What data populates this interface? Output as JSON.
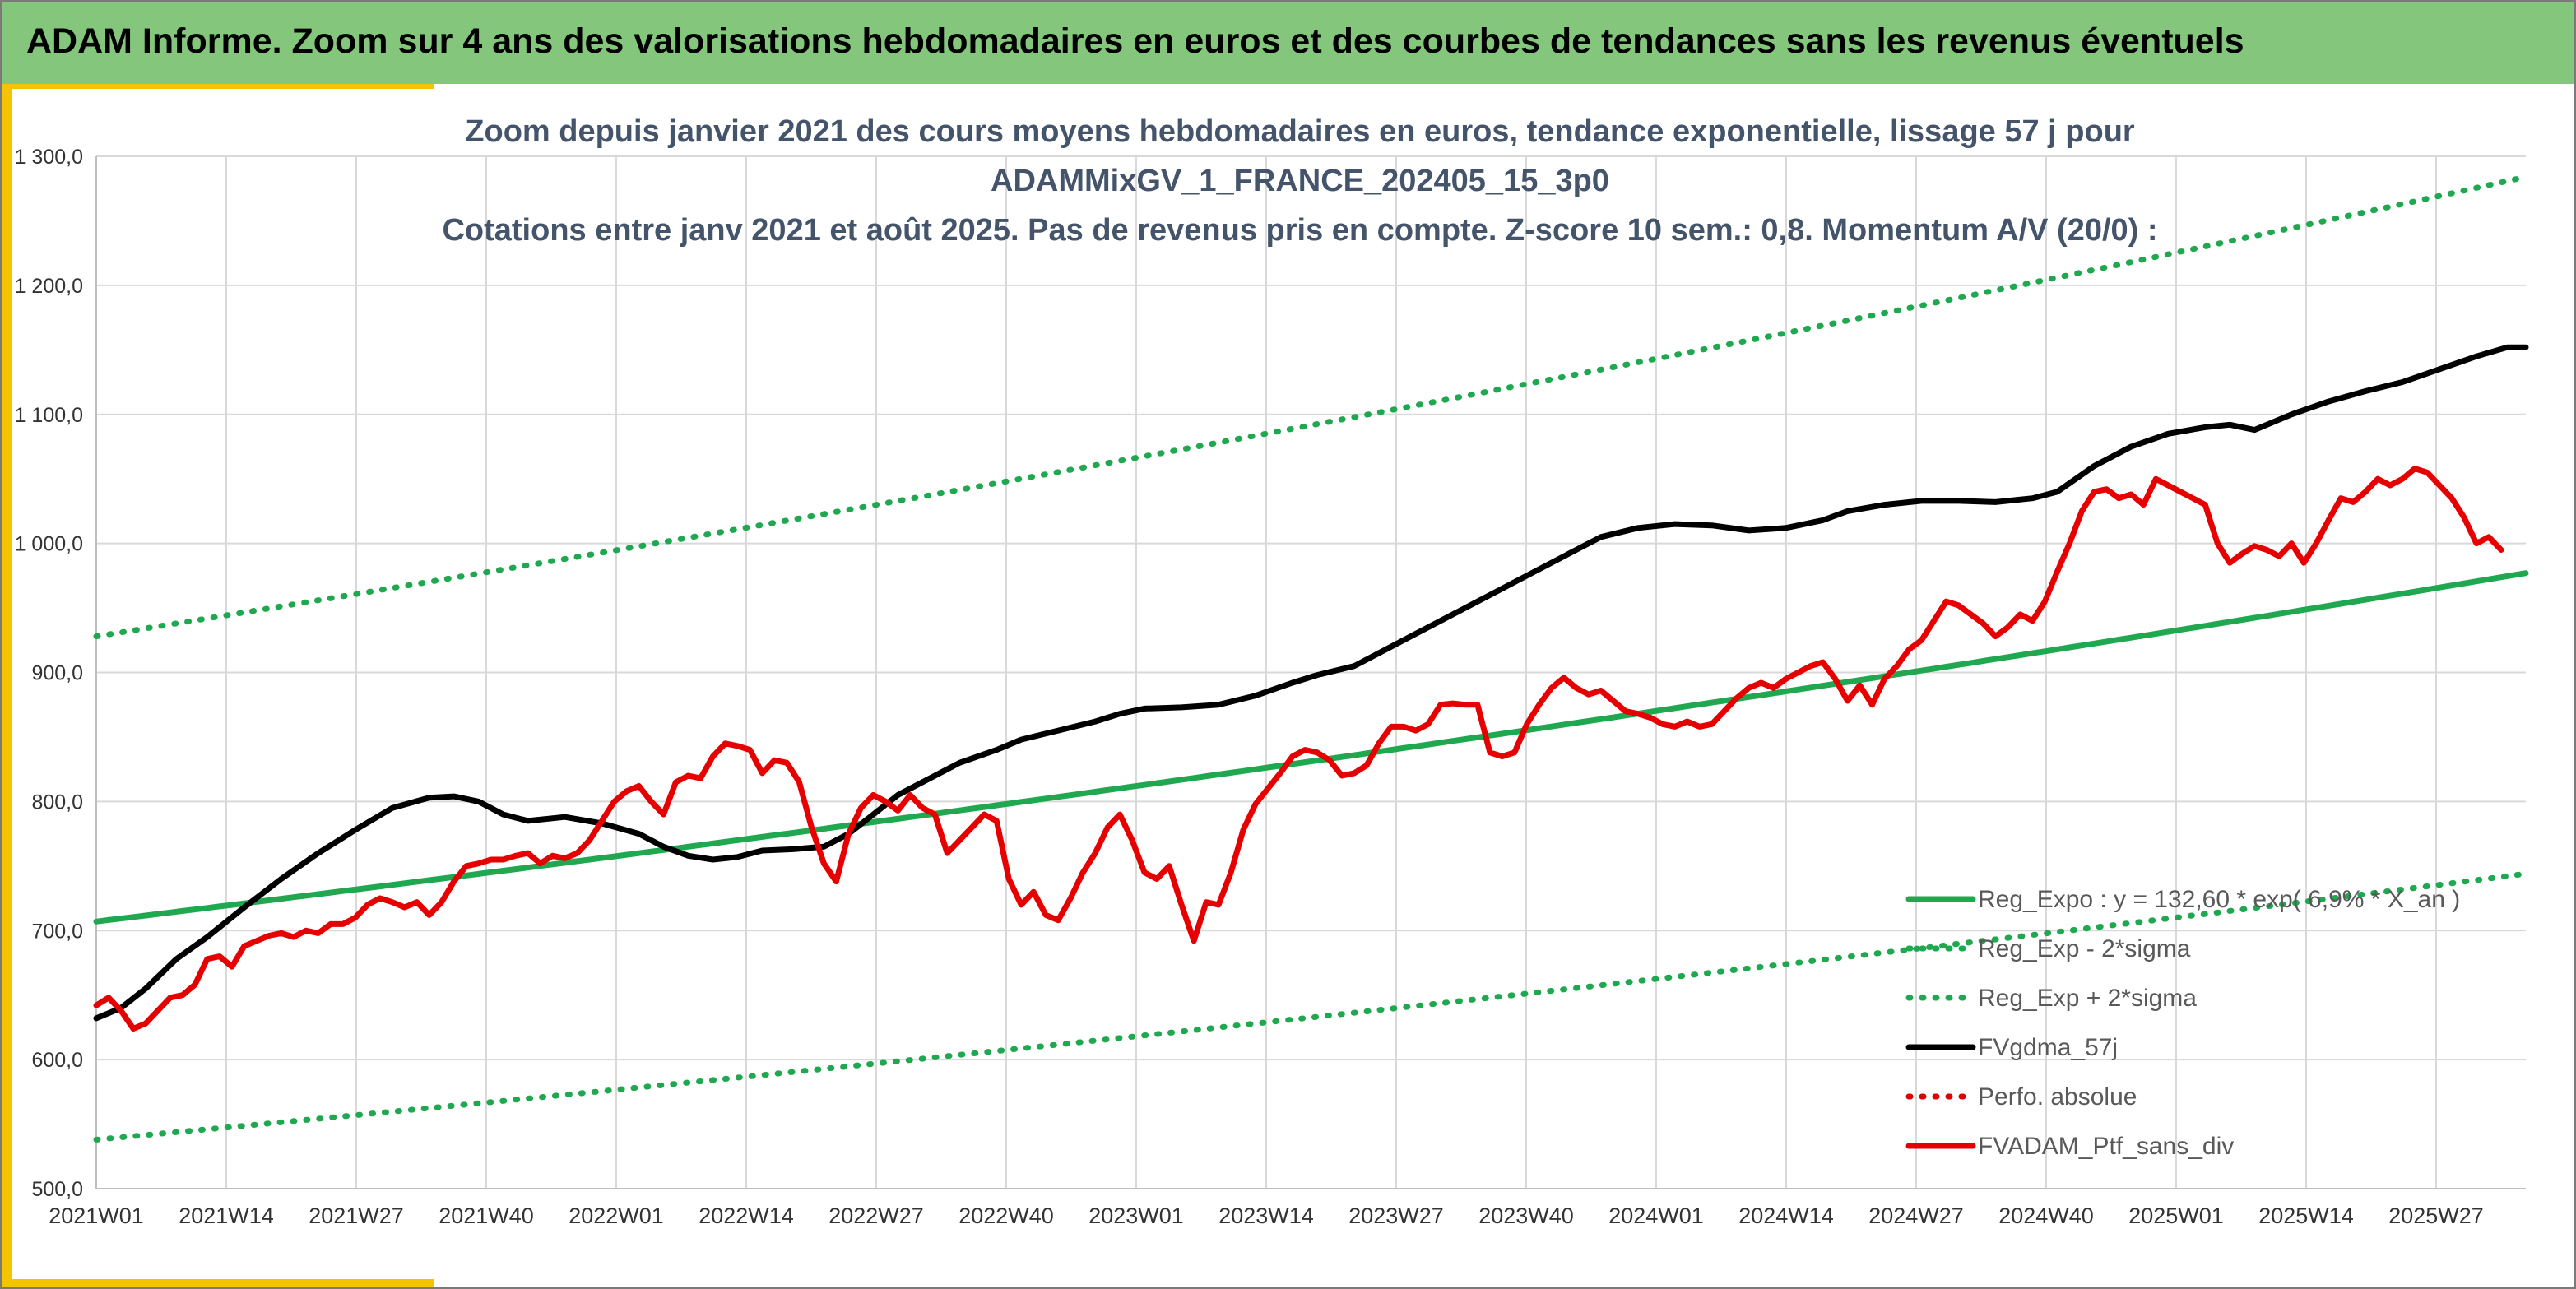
{
  "header": {
    "title": "ADAM Informe. Zoom sur 4 ans des valorisations hebdomadaires en euros et des courbes de tendances sans les revenus éventuels"
  },
  "colors": {
    "header_bg": "#84c77c",
    "accent": "#f5c400",
    "reg_expo": "#1fa84f",
    "fvgdma": "#000000",
    "perfo": "#e00000",
    "fvadam": "#e60000"
  },
  "chart_data": {
    "type": "line",
    "title_lines": [
      "Zoom depuis janvier 2021 des cours moyens hebdomadaires en euros, tendance exponentielle, lissage 57 j pour",
      "ADAMMixGV_1_FRANCE_202405_15_3p0",
      "Cotations entre janv 2021 et août 2025. Pas de revenus pris en compte. Z-score 10 sem.: 0,8. Momentum A/V (20/0) :"
    ],
    "x_tick_labels": [
      "2021W01",
      "2021W14",
      "2021W27",
      "2021W40",
      "2022W01",
      "2022W14",
      "2022W27",
      "2022W40",
      "2023W01",
      "2023W14",
      "2023W27",
      "2023W40",
      "2024W01",
      "2024W14",
      "2024W27",
      "2024W40",
      "2025W01",
      "2025W14",
      "2025W27"
    ],
    "y_tick_labels": [
      "500,0",
      "600,0",
      "700,0",
      "800,0",
      "900,0",
      "1 000,0",
      "1 100,0",
      "1 200,0",
      "1 300,0"
    ],
    "ylim": [
      500,
      1300
    ],
    "x_range_weeks": [
      0,
      242
    ],
    "grid": true,
    "legend_position": "bottom-right",
    "legend": [
      {
        "label": "Reg_Expo : y = 132,60 * exp( 6,9% * X_an )",
        "style": "solid",
        "color": "#1fa84f"
      },
      {
        "label": "Reg_Exp - 2*sigma",
        "style": "dotted",
        "color": "#1fa84f"
      },
      {
        "label": "Reg_Exp + 2*sigma",
        "style": "dotted",
        "color": "#1fa84f"
      },
      {
        "label": "FVgdma_57j",
        "style": "solid",
        "color": "#000000"
      },
      {
        "label": "Perfo. absolue",
        "style": "dotted",
        "color": "#e00000"
      },
      {
        "label": "FVADAM_Ptf_sans_div",
        "style": "solid",
        "color": "#e60000"
      }
    ],
    "series": [
      {
        "name": "Reg_Expo : y = 132,60 * exp( 6,9% * X_an )",
        "kind": "exp",
        "start": 707,
        "end": 977,
        "color": "#1fa84f",
        "dash": "solid"
      },
      {
        "name": "Reg_Exp - 2*sigma",
        "kind": "exp",
        "start": 538,
        "end": 744,
        "color": "#1fa84f",
        "dash": "dotted"
      },
      {
        "name": "Reg_Exp + 2*sigma",
        "kind": "exp",
        "start": 928,
        "end": 1284,
        "color": "#1fa84f",
        "dash": "dotted"
      },
      {
        "name": "FVgdma_57j",
        "kind": "points",
        "color": "#000000",
        "dash": "solid",
        "points": [
          [
            0,
            632
          ],
          [
            4,
            640
          ],
          [
            8,
            655
          ],
          [
            13,
            678
          ],
          [
            18,
            695
          ],
          [
            24,
            718
          ],
          [
            30,
            740
          ],
          [
            36,
            760
          ],
          [
            42,
            778
          ],
          [
            48,
            795
          ],
          [
            54,
            803
          ],
          [
            58,
            804
          ],
          [
            62,
            800
          ],
          [
            66,
            790
          ],
          [
            70,
            785
          ],
          [
            76,
            788
          ],
          [
            82,
            783
          ],
          [
            88,
            775
          ],
          [
            92,
            765
          ],
          [
            96,
            758
          ],
          [
            100,
            755
          ],
          [
            104,
            757
          ],
          [
            108,
            762
          ],
          [
            113,
            763
          ],
          [
            118,
            765
          ],
          [
            122,
            775
          ],
          [
            126,
            790
          ],
          [
            130,
            805
          ],
          [
            136,
            820
          ],
          [
            140,
            830
          ],
          [
            146,
            840
          ],
          [
            150,
            848
          ],
          [
            156,
            855
          ],
          [
            162,
            862
          ],
          [
            166,
            868
          ],
          [
            170,
            872
          ],
          [
            176,
            873
          ],
          [
            182,
            875
          ],
          [
            188,
            882
          ],
          [
            194,
            892
          ],
          [
            198,
            898
          ],
          [
            204,
            905
          ],
          [
            208,
            915
          ],
          [
            214,
            930
          ],
          [
            220,
            945
          ],
          [
            226,
            960
          ],
          [
            232,
            975
          ],
          [
            238,
            990
          ],
          [
            244,
            1005
          ],
          [
            250,
            1012
          ],
          [
            256,
            1015
          ],
          [
            262,
            1014
          ],
          [
            268,
            1010
          ],
          [
            274,
            1012
          ],
          [
            280,
            1018
          ],
          [
            284,
            1025
          ],
          [
            290,
            1030
          ],
          [
            296,
            1033
          ],
          [
            302,
            1033
          ],
          [
            308,
            1032
          ],
          [
            314,
            1035
          ],
          [
            318,
            1040
          ],
          [
            324,
            1060
          ],
          [
            330,
            1075
          ],
          [
            336,
            1085
          ],
          [
            342,
            1090
          ],
          [
            346,
            1092
          ],
          [
            350,
            1088
          ],
          [
            356,
            1100
          ],
          [
            362,
            1110
          ],
          [
            368,
            1118
          ],
          [
            374,
            1125
          ],
          [
            380,
            1135
          ],
          [
            386,
            1145
          ],
          [
            391,
            1152
          ],
          [
            394,
            1152
          ]
        ]
      },
      {
        "name": "FVADAM_Ptf_sans_div",
        "kind": "points",
        "color": "#e60000",
        "dash": "solid",
        "points": [
          [
            0,
            642
          ],
          [
            2,
            648
          ],
          [
            4,
            638
          ],
          [
            6,
            624
          ],
          [
            8,
            628
          ],
          [
            10,
            638
          ],
          [
            12,
            648
          ],
          [
            14,
            650
          ],
          [
            16,
            658
          ],
          [
            18,
            678
          ],
          [
            20,
            680
          ],
          [
            22,
            672
          ],
          [
            24,
            688
          ],
          [
            26,
            692
          ],
          [
            28,
            696
          ],
          [
            30,
            698
          ],
          [
            32,
            695
          ],
          [
            34,
            700
          ],
          [
            36,
            698
          ],
          [
            38,
            705
          ],
          [
            40,
            705
          ],
          [
            42,
            710
          ],
          [
            44,
            720
          ],
          [
            46,
            725
          ],
          [
            48,
            722
          ],
          [
            50,
            718
          ],
          [
            52,
            722
          ],
          [
            54,
            712
          ],
          [
            56,
            722
          ],
          [
            58,
            738
          ],
          [
            60,
            750
          ],
          [
            62,
            752
          ],
          [
            64,
            755
          ],
          [
            66,
            755
          ],
          [
            68,
            758
          ],
          [
            70,
            760
          ],
          [
            72,
            752
          ],
          [
            74,
            758
          ],
          [
            76,
            756
          ],
          [
            78,
            760
          ],
          [
            80,
            770
          ],
          [
            82,
            785
          ],
          [
            84,
            800
          ],
          [
            86,
            808
          ],
          [
            88,
            812
          ],
          [
            90,
            800
          ],
          [
            92,
            790
          ],
          [
            94,
            815
          ],
          [
            96,
            820
          ],
          [
            98,
            818
          ],
          [
            100,
            835
          ],
          [
            102,
            845
          ],
          [
            104,
            843
          ],
          [
            106,
            840
          ],
          [
            108,
            822
          ],
          [
            110,
            832
          ],
          [
            112,
            830
          ],
          [
            114,
            815
          ],
          [
            116,
            780
          ],
          [
            118,
            752
          ],
          [
            120,
            738
          ],
          [
            122,
            775
          ],
          [
            124,
            795
          ],
          [
            126,
            805
          ],
          [
            128,
            800
          ],
          [
            130,
            793
          ],
          [
            132,
            805
          ],
          [
            134,
            795
          ],
          [
            136,
            790
          ],
          [
            138,
            760
          ],
          [
            140,
            770
          ],
          [
            142,
            780
          ],
          [
            144,
            790
          ],
          [
            146,
            785
          ],
          [
            148,
            740
          ],
          [
            150,
            720
          ],
          [
            152,
            730
          ],
          [
            154,
            712
          ],
          [
            156,
            708
          ],
          [
            158,
            725
          ],
          [
            160,
            745
          ],
          [
            162,
            760
          ],
          [
            164,
            780
          ],
          [
            166,
            790
          ],
          [
            168,
            770
          ],
          [
            170,
            745
          ],
          [
            172,
            740
          ],
          [
            174,
            750
          ],
          [
            176,
            720
          ],
          [
            178,
            692
          ],
          [
            180,
            722
          ],
          [
            182,
            720
          ],
          [
            184,
            745
          ],
          [
            186,
            778
          ],
          [
            188,
            798
          ],
          [
            190,
            810
          ],
          [
            192,
            822
          ],
          [
            194,
            835
          ],
          [
            196,
            840
          ],
          [
            198,
            838
          ],
          [
            200,
            832
          ],
          [
            202,
            820
          ],
          [
            204,
            822
          ],
          [
            206,
            828
          ],
          [
            208,
            845
          ],
          [
            210,
            858
          ],
          [
            212,
            858
          ],
          [
            214,
            855
          ],
          [
            216,
            860
          ],
          [
            218,
            875
          ],
          [
            220,
            876
          ],
          [
            222,
            875
          ],
          [
            224,
            875
          ],
          [
            226,
            838
          ],
          [
            228,
            835
          ],
          [
            230,
            838
          ],
          [
            232,
            860
          ],
          [
            234,
            875
          ],
          [
            236,
            888
          ],
          [
            238,
            896
          ],
          [
            240,
            888
          ],
          [
            242,
            883
          ],
          [
            244,
            886
          ],
          [
            246,
            878
          ],
          [
            248,
            870
          ],
          [
            250,
            868
          ],
          [
            252,
            865
          ],
          [
            254,
            860
          ],
          [
            256,
            858
          ],
          [
            258,
            862
          ],
          [
            260,
            858
          ],
          [
            262,
            860
          ],
          [
            264,
            870
          ],
          [
            266,
            880
          ],
          [
            268,
            888
          ],
          [
            270,
            892
          ],
          [
            272,
            888
          ],
          [
            274,
            895
          ],
          [
            276,
            900
          ],
          [
            278,
            905
          ],
          [
            280,
            908
          ],
          [
            282,
            895
          ],
          [
            284,
            878
          ],
          [
            286,
            890
          ],
          [
            288,
            875
          ],
          [
            290,
            895
          ],
          [
            292,
            905
          ],
          [
            294,
            918
          ],
          [
            296,
            925
          ],
          [
            298,
            940
          ],
          [
            300,
            955
          ],
          [
            302,
            952
          ],
          [
            304,
            945
          ],
          [
            306,
            938
          ],
          [
            308,
            928
          ],
          [
            310,
            935
          ],
          [
            312,
            945
          ],
          [
            314,
            940
          ],
          [
            316,
            955
          ],
          [
            318,
            978
          ],
          [
            320,
            1000
          ],
          [
            322,
            1025
          ],
          [
            324,
            1040
          ],
          [
            326,
            1042
          ],
          [
            328,
            1035
          ],
          [
            330,
            1038
          ],
          [
            332,
            1030
          ],
          [
            334,
            1050
          ],
          [
            336,
            1045
          ],
          [
            338,
            1040
          ],
          [
            340,
            1035
          ],
          [
            342,
            1030
          ],
          [
            344,
            1000
          ],
          [
            346,
            985
          ],
          [
            348,
            992
          ],
          [
            350,
            998
          ],
          [
            352,
            995
          ],
          [
            354,
            990
          ],
          [
            356,
            1000
          ],
          [
            358,
            985
          ],
          [
            360,
            1000
          ],
          [
            362,
            1018
          ],
          [
            364,
            1035
          ],
          [
            366,
            1032
          ],
          [
            368,
            1040
          ],
          [
            370,
            1050
          ],
          [
            372,
            1045
          ],
          [
            374,
            1050
          ],
          [
            376,
            1058
          ],
          [
            378,
            1055
          ],
          [
            380,
            1045
          ],
          [
            382,
            1035
          ],
          [
            384,
            1020
          ],
          [
            386,
            1000
          ],
          [
            388,
            1005
          ],
          [
            390,
            995
          ]
        ]
      }
    ]
  }
}
